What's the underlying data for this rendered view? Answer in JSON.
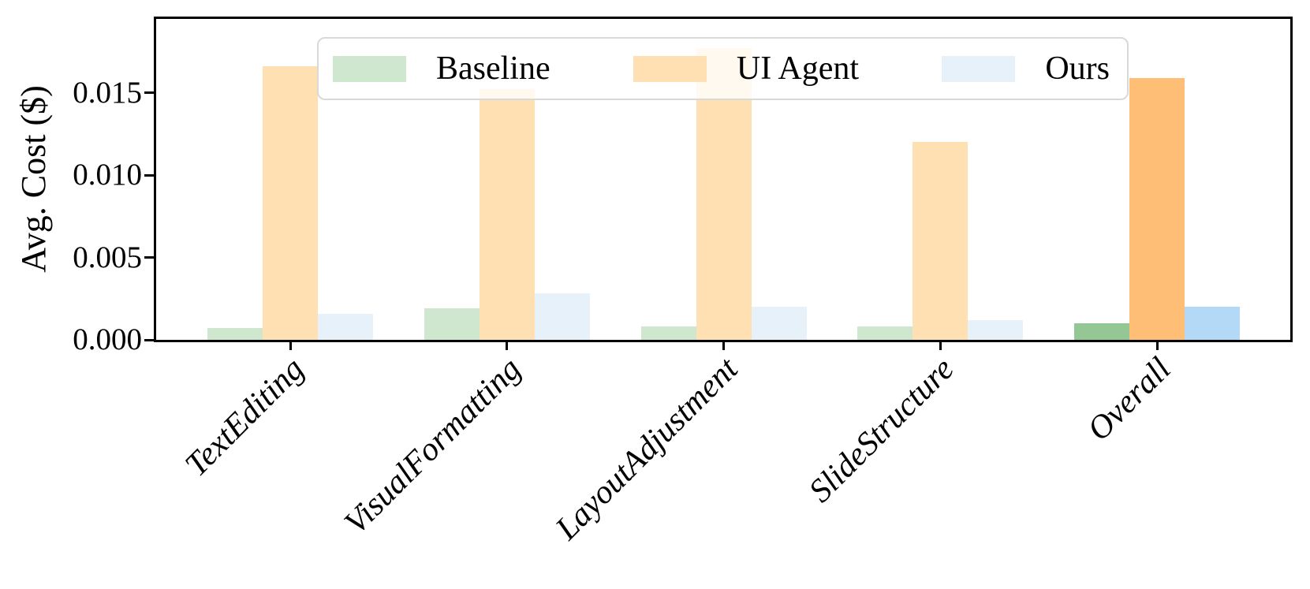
{
  "chart_data": {
    "type": "bar",
    "title": "",
    "xlabel": "",
    "ylabel": "Avg. Cost ($)",
    "categories": [
      "TextEditing",
      "VisualFormatting",
      "LayoutAdjustment",
      "SlideStructure",
      "Overall"
    ],
    "series": [
      {
        "name": "Baseline",
        "color_light": "#cfe7cf",
        "color_full": "#94c794",
        "values": [
          0.0007,
          0.0019,
          0.0008,
          0.0008,
          0.001
        ]
      },
      {
        "name": "UI Agent",
        "color_light": "#fee0b3",
        "color_full": "#ffbe76",
        "values": [
          0.0166,
          0.0152,
          0.0177,
          0.012,
          0.0159
        ]
      },
      {
        "name": "Ours",
        "color_light": "#e6f1fa",
        "color_full": "#b4d9f6",
        "values": [
          0.0016,
          0.0028,
          0.002,
          0.0012,
          0.002
        ]
      }
    ],
    "highlight_category": "Overall",
    "y_ticks": [
      "0.000",
      "0.005",
      "0.010",
      "0.015"
    ],
    "y_tick_values": [
      0,
      0.005,
      0.01,
      0.015
    ],
    "ylim": [
      0,
      0.0195
    ],
    "grid": false,
    "axis_color": "#000000",
    "legend": {
      "position": "upper center",
      "entries": [
        "Baseline",
        "UI Agent",
        "Ours"
      ]
    }
  }
}
